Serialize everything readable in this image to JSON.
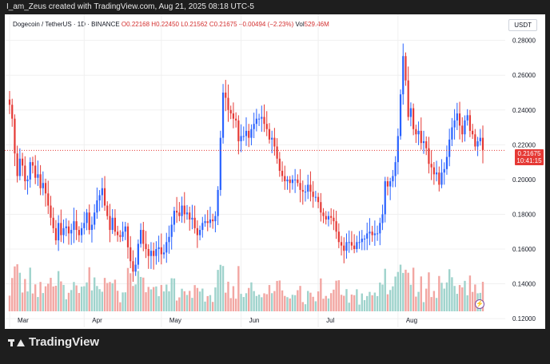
{
  "header": {
    "watermark_text": "I_am_Zeus created with TradingView.com, Aug 21, 2025 08:18 UTC-5"
  },
  "legend": {
    "symbol": "Dogecoin / TetherUS · 1D · BINANCE",
    "open": "O0.22168",
    "high": "H0.22450",
    "low": "L0.21562",
    "close": "C0.21675",
    "change": "−0.00494 (−2.23%)",
    "volume_label": "Vol",
    "volume_value": "529.46M"
  },
  "currency_button": "USDT",
  "price_tag": {
    "price": "0.21675",
    "countdown": "10:41:15",
    "color": "#e53935"
  },
  "footer": {
    "brand": "TradingView"
  },
  "colors": {
    "up": "#2962ff",
    "down": "#e53935",
    "vol_up": "#9fd3cc",
    "vol_down": "#f2a6a2",
    "gridline": "#f0f0f0",
    "background": "#ffffff"
  },
  "chart_data": {
    "type": "candlestick",
    "title": "",
    "x_tick_labels": [
      "Mar",
      "Apr",
      "May",
      "Jun",
      "Jul",
      "Aug"
    ],
    "y_tick_labels": [
      "0.28000",
      "0.26000",
      "0.24000",
      "0.22000",
      "0.20000",
      "0.18000",
      "0.16000",
      "0.14000",
      "0.12000"
    ],
    "ylim": [
      0.115,
      0.295
    ],
    "grid": true,
    "last_price": 0.21675,
    "closes": [
      0.243,
      0.235,
      0.215,
      0.202,
      0.212,
      0.208,
      0.199,
      0.2,
      0.21,
      0.208,
      0.201,
      0.203,
      0.195,
      0.198,
      0.192,
      0.185,
      0.178,
      0.172,
      0.165,
      0.175,
      0.168,
      0.172,
      0.173,
      0.169,
      0.171,
      0.176,
      0.171,
      0.168,
      0.172,
      0.175,
      0.181,
      0.171,
      0.174,
      0.181,
      0.188,
      0.191,
      0.195,
      0.185,
      0.179,
      0.171,
      0.178,
      0.17,
      0.168,
      0.167,
      0.17,
      0.173,
      0.161,
      0.153,
      0.147,
      0.151,
      0.163,
      0.171,
      0.163,
      0.16,
      0.156,
      0.159,
      0.156,
      0.16,
      0.161,
      0.157,
      0.158,
      0.164,
      0.167,
      0.174,
      0.182,
      0.181,
      0.179,
      0.185,
      0.18,
      0.181,
      0.177,
      0.178,
      0.172,
      0.168,
      0.171,
      0.175,
      0.176,
      0.175,
      0.177,
      0.176,
      0.179,
      0.194,
      0.224,
      0.25,
      0.247,
      0.24,
      0.238,
      0.235,
      0.234,
      0.222,
      0.225,
      0.225,
      0.228,
      0.224,
      0.229,
      0.232,
      0.235,
      0.235,
      0.236,
      0.232,
      0.229,
      0.223,
      0.224,
      0.219,
      0.212,
      0.205,
      0.202,
      0.199,
      0.2,
      0.198,
      0.2,
      0.2,
      0.198,
      0.194,
      0.193,
      0.193,
      0.197,
      0.193,
      0.19,
      0.19,
      0.187,
      0.181,
      0.179,
      0.177,
      0.179,
      0.178,
      0.176,
      0.17,
      0.164,
      0.162,
      0.159,
      0.164,
      0.164,
      0.162,
      0.16,
      0.164,
      0.164,
      0.166,
      0.166,
      0.169,
      0.17,
      0.168,
      0.169,
      0.169,
      0.175,
      0.18,
      0.199,
      0.196,
      0.199,
      0.202,
      0.21,
      0.225,
      0.249,
      0.271,
      0.257,
      0.236,
      0.241,
      0.229,
      0.226,
      0.228,
      0.221,
      0.222,
      0.218,
      0.209,
      0.207,
      0.203,
      0.204,
      0.197,
      0.204,
      0.206,
      0.213,
      0.223,
      0.23,
      0.234,
      0.238,
      0.231,
      0.226,
      0.234,
      0.237,
      0.228,
      0.226,
      0.219,
      0.222,
      0.224,
      0.217
    ]
  }
}
